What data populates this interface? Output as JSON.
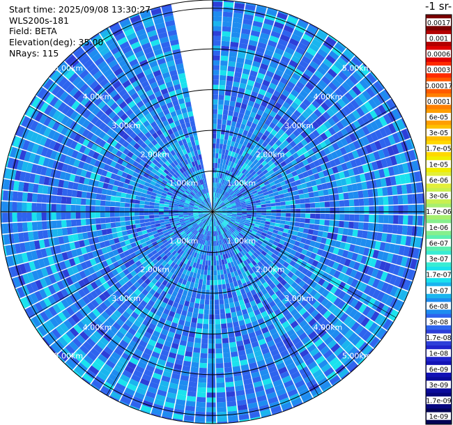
{
  "info": {
    "start_time": "Start time: 2025/09/08 13:30:27",
    "instrument": "WLS200s-181",
    "field": "Field: BETA",
    "elevation": "Elevation(deg): 35.00",
    "nrays": "NRays: 115"
  },
  "colorbar": {
    "title": "-1 sr-",
    "ticks": [
      "0.0017",
      "0.001",
      "0.0006",
      "0.0003",
      "0.00017",
      "0.0001",
      "6e-05",
      "3e-05",
      "1.7e-05",
      "1e-05",
      "6e-06",
      "3e-06",
      "1.7e-06",
      "1e-06",
      "6e-07",
      "3e-07",
      "1.7e-07",
      "1e-07",
      "6e-08",
      "3e-08",
      "1.7e-08",
      "1e-08",
      "6e-09",
      "3e-09",
      "1.7e-09",
      "1e-09"
    ],
    "colors": [
      "#7a0000",
      "#b30000",
      "#e00000",
      "#ff2a00",
      "#ff5a00",
      "#ff7f00",
      "#ff9f00",
      "#ffbf00",
      "#ffd700",
      "#f0ee00",
      "#e3ef3a",
      "#c9f050",
      "#a6ef6e",
      "#86ef8d",
      "#5cefb0",
      "#38ecd4",
      "#1ae2ee",
      "#1ab5ee",
      "#1e8cf0",
      "#2e64ee",
      "#2d3fd8",
      "#1f23cc",
      "#1212b5",
      "#0b0b9a",
      "#06067e",
      "#030355"
    ]
  },
  "chart_data": {
    "type": "heatmap",
    "projection": "polar PPI scan",
    "rays": 115,
    "elevation_deg": 35.0,
    "range_rings_km": [
      1,
      2,
      3,
      4,
      5
    ],
    "ring_labels": [
      "1.00km",
      "2.00km",
      "3.00km",
      "4.00km",
      "5.00km"
    ],
    "max_range_km": 5.2,
    "azimuth_gap_deg": [
      349,
      360
    ],
    "colormap_scale": "log",
    "value_range": [
      1e-09,
      0.0017
    ],
    "dominant_values": [
      "3e-08",
      "6e-08",
      "1e-07"
    ]
  }
}
